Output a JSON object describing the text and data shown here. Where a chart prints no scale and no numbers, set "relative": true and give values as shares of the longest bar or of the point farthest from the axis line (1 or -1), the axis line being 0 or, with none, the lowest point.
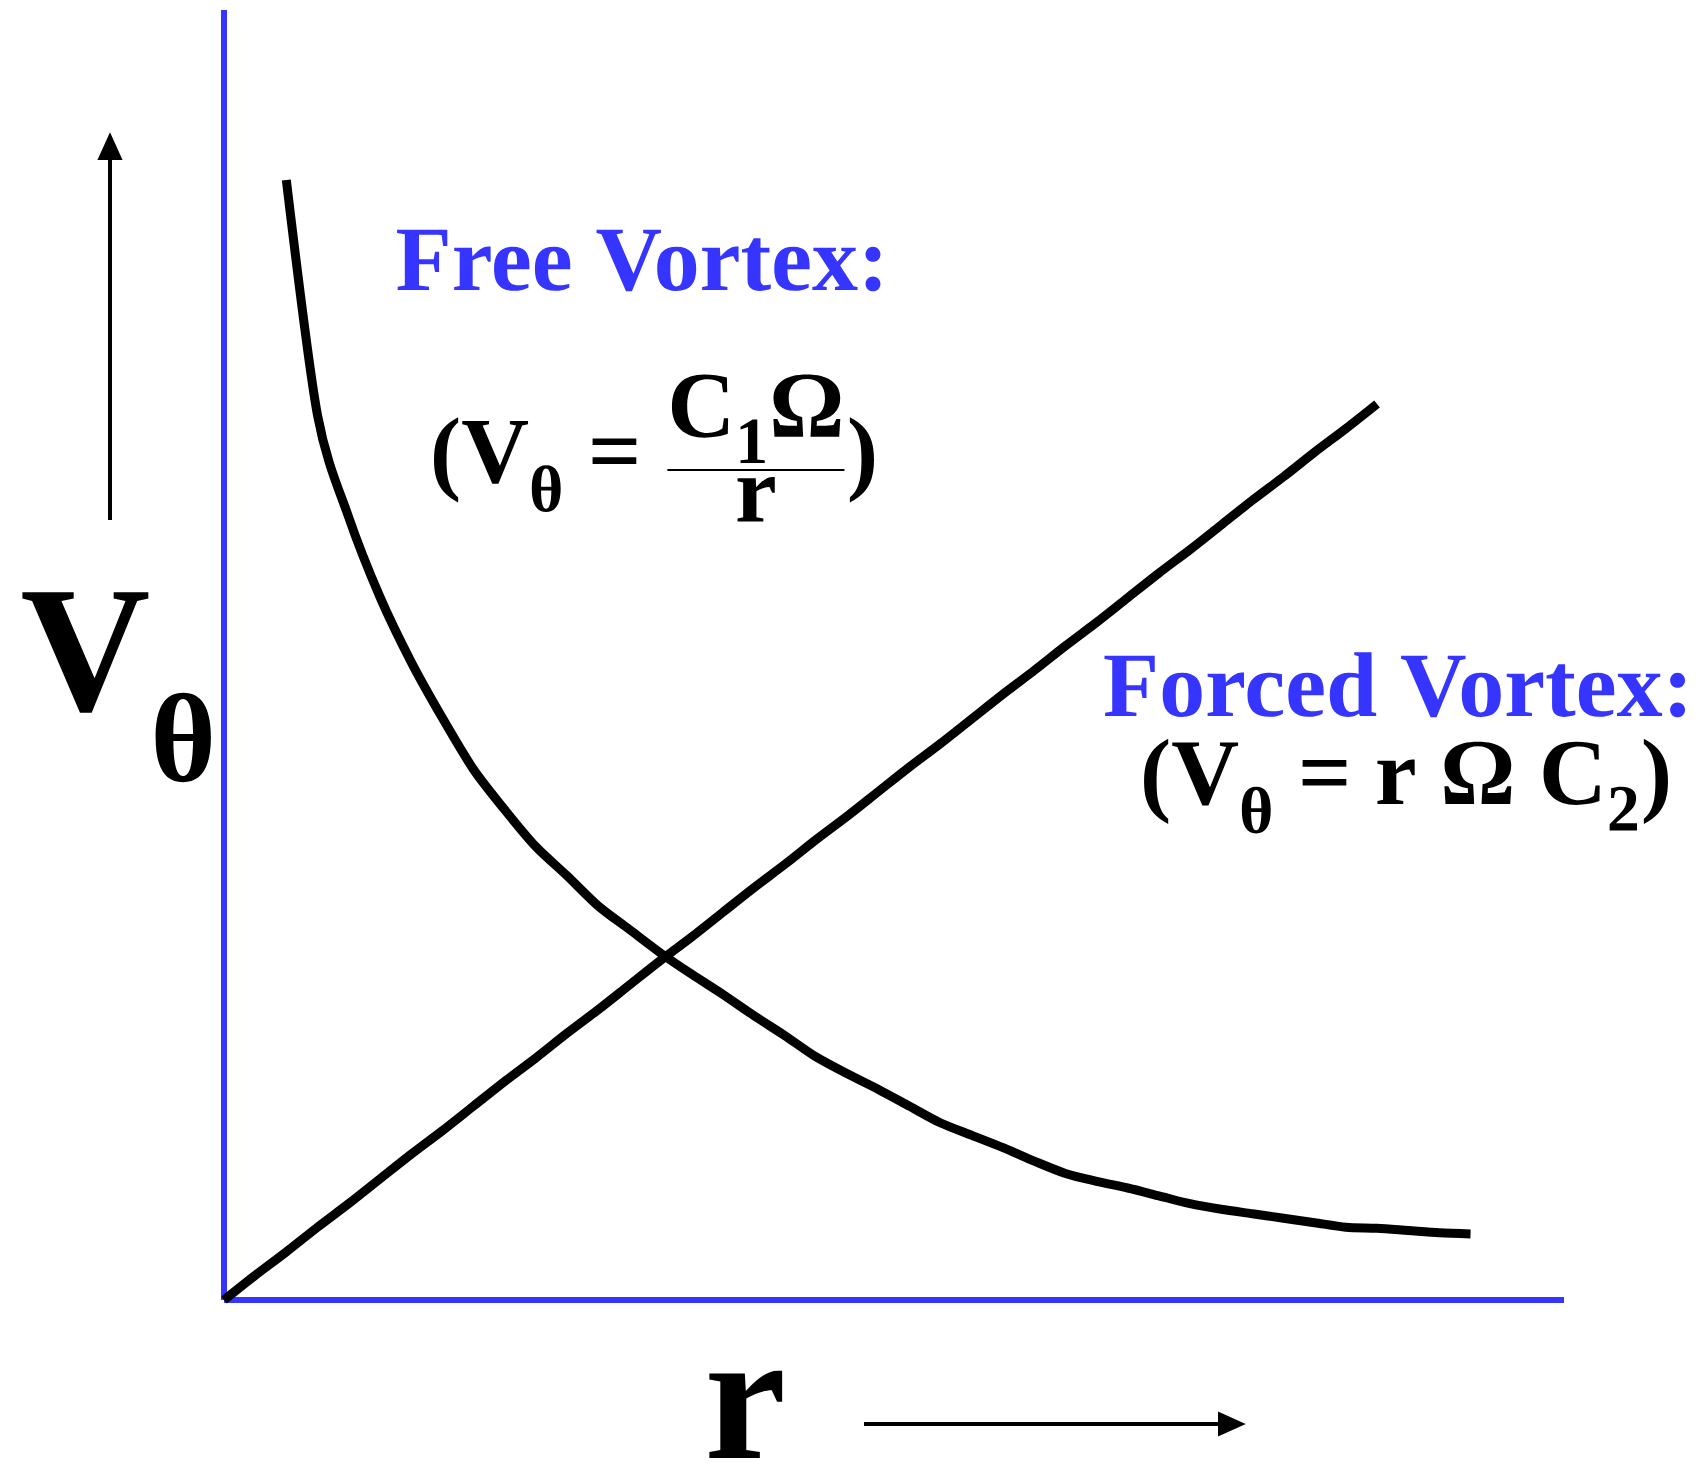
{
  "chart_data": {
    "type": "line",
    "relative": true,
    "xlabel": "r",
    "ylabel": "V$_{θ}$",
    "line_style": "solid",
    "categories": [
      null,
      null,
      null,
      null,
      null,
      null,
      null,
      null,
      null,
      null,
      null,
      null,
      null,
      null,
      null,
      null,
      null,
      null,
      null,
      null,
      null,
      null,
      null,
      null,
      null,
      null,
      null,
      null,
      null,
      null,
      null,
      null,
      null,
      null,
      null,
      null,
      null,
      null,
      null,
      null,
      null,
      null,
      null,
      null
    ],
    "series": [
      {
        "color": "#000000",
        "values": [
          null,
          null,
          1.0,
          0.79,
          0.699,
          0.628,
          0.57,
          0.52,
          0.474,
          0.438,
          0.405,
          0.379,
          0.352,
          0.331,
          0.31,
          0.291,
          0.273,
          0.254,
          0.236,
          0.217,
          0.202,
          0.188,
          0.173,
          0.158,
          0.147,
          0.136,
          0.124,
          0.113,
          0.106,
          0.1,
          0.093,
          0.086,
          0.081,
          0.077,
          0.073,
          0.069,
          0.065,
          0.064,
          0.062,
          0.06,
          0.059,
          null,
          null,
          null
        ]
      },
      {
        "color": "#000000",
        "values": [
          0,
          0.022,
          0.043,
          0.065,
          0.086,
          0.108,
          0.13,
          0.151,
          0.173,
          0.195,
          0.216,
          0.238,
          0.259,
          0.281,
          0.303,
          0.324,
          0.346,
          0.368,
          0.389,
          0.411,
          0.432,
          0.454,
          0.476,
          0.497,
          0.519,
          0.541,
          0.562,
          0.584,
          0.605,
          0.627,
          0.649,
          0.67,
          0.692,
          0.714,
          0.735,
          0.757,
          0.778,
          0.8,
          null,
          null,
          null,
          null,
          null,
          null
        ]
      }
    ],
    "annotations": [
      "Free Vortex:",
      "\\textbf{(V}_{\\textbf{θ}}\\textbf{ = }\\frac{\\textbf{C}_{\\textbf{1}}\\textbf{Ω}}{\\textbf{r}}\\textbf{)}",
      "Forced Vortex:",
      "\\textbf{(V}_{\\textbf{θ}}\\textbf{ = r Ω C}_{\\textbf{2}}\\textbf{)}"
    ]
  }
}
